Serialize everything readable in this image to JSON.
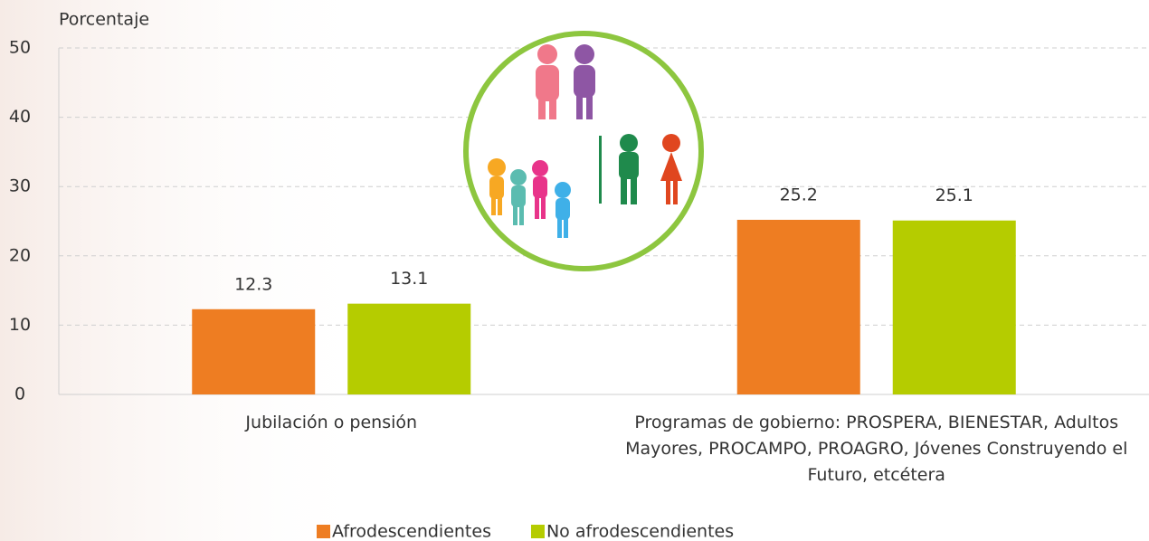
{
  "chart_data": {
    "type": "bar",
    "y_label": "Porcentaje",
    "categories": [
      "Jubilación o pensión",
      "Programas de gobierno: PROSPERA, BIENESTAR, Adultos Mayores, PROCAMPO, PROAGRO, Jóvenes Construyendo el Futuro, etcétera"
    ],
    "series": [
      {
        "name": "Afrodescendientes",
        "color": "#ee7d22",
        "values": [
          12.3,
          25.2
        ]
      },
      {
        "name": "No afrodescendientes",
        "color": "#b5cc00",
        "values": [
          13.1,
          25.1
        ]
      }
    ],
    "ylim": [
      0,
      50
    ],
    "yticks": [
      0,
      10,
      20,
      30,
      40,
      50
    ],
    "grid": true,
    "legend": "bottom"
  }
}
